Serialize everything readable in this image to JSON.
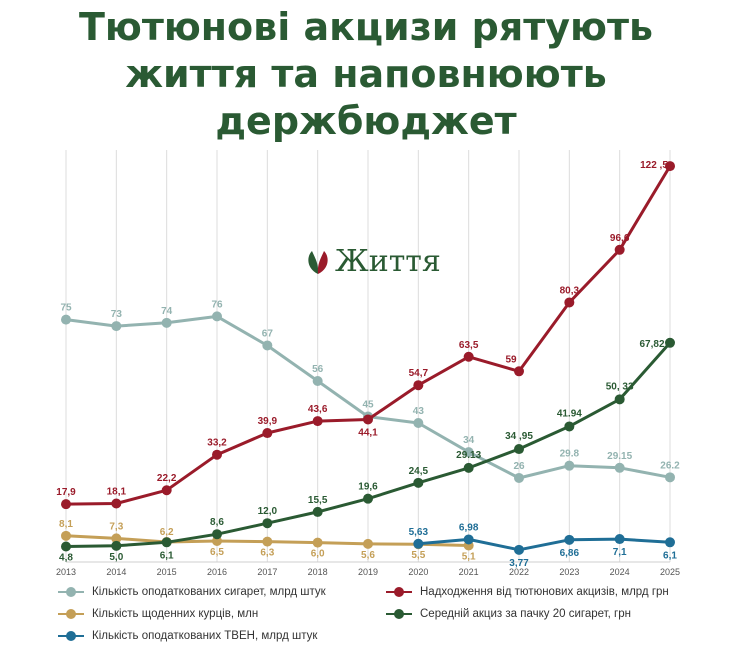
{
  "title_lines": [
    "Тютюнові акцизи рятують",
    "життя та наповнюють",
    "держбюджет"
  ],
  "logo_text": "Життя",
  "chart_data": {
    "type": "line",
    "x": [
      "2013",
      "2014",
      "2015",
      "2016",
      "2017",
      "2018",
      "2019",
      "2020",
      "2021",
      "2022",
      "2023",
      "2024",
      "2025"
    ],
    "ylim": [
      0,
      125
    ],
    "grid": "vertical",
    "legend_position": "bottom",
    "series": [
      {
        "key": "cig",
        "name": "Кількість оподаткованих сигарет, млрд штук",
        "color": "#93b3b0",
        "values": [
          75,
          73,
          74,
          76,
          67,
          56,
          45,
          43,
          34,
          26,
          29.8,
          29.15,
          26.2
        ],
        "labels": [
          "75",
          "73",
          "74",
          "76",
          "67",
          "56",
          "45",
          "43",
          "34",
          "26",
          "29.8",
          "29.15",
          "26.2"
        ]
      },
      {
        "key": "rev",
        "name": "Надходження від тютюнових акцизів, млрд грн",
        "color": "#9a1b2a",
        "values": [
          17.9,
          18.1,
          22.2,
          33.2,
          39.9,
          43.6,
          44.1,
          54.7,
          63.5,
          59,
          80.3,
          96.6,
          122.5
        ],
        "labels": [
          "17,9",
          "18,1",
          "22,2",
          "33,2",
          "39,9",
          "43,6",
          "44,1",
          "54,7",
          "63,5",
          "59",
          "80,3",
          "96,6",
          "122 ,5"
        ]
      },
      {
        "key": "smk",
        "name": "Кількість щоденних курців, млн",
        "color": "#c49f57",
        "values": [
          8.1,
          7.3,
          6.2,
          6.5,
          6.3,
          6.0,
          5.6,
          5.5,
          5.1,
          null,
          null,
          null,
          null
        ],
        "labels": [
          "8,1",
          "7,3",
          "6,2",
          "6,5",
          "6,3",
          "6,0",
          "5,6",
          "5,5",
          "5,1",
          null,
          null,
          null,
          null
        ]
      },
      {
        "key": "exc",
        "name": "Середній акциз за пачку 20 сигарет, грн",
        "color": "#2a5a33",
        "values": [
          4.8,
          5.0,
          6.1,
          8.6,
          12.0,
          15.5,
          19.6,
          24.5,
          29.13,
          34.95,
          41.94,
          50.33,
          67.82
        ],
        "labels": [
          "4,8",
          "5,0",
          "6,1",
          "8,6",
          "12,0",
          "15,5",
          "19,6",
          "24,5",
          "29.13",
          "34 ,95",
          "41.94",
          "50, 33",
          "67,82"
        ]
      },
      {
        "key": "hnb",
        "name": "Кількість оподаткованих ТВЕН, млрд штук",
        "color": "#1f6e96",
        "values": [
          null,
          null,
          null,
          null,
          null,
          null,
          null,
          5.63,
          6.98,
          3.77,
          6.86,
          7.1,
          6.1
        ],
        "labels": [
          null,
          null,
          null,
          null,
          null,
          null,
          null,
          "5,63",
          "6,98",
          "3,77",
          "6,86",
          "7,1",
          "6,1"
        ]
      }
    ]
  },
  "legend": [
    {
      "series": "cig",
      "color": "#93b3b0",
      "label": "Кількість оподаткованих сигарет, млрд штук"
    },
    {
      "series": "rev",
      "color": "#9a1b2a",
      "label": "Надходження від тютюнових акцизів, млрд грн"
    },
    {
      "series": "smk",
      "color": "#c49f57",
      "label": "Кількість щоденних курців, млн"
    },
    {
      "series": "exc",
      "color": "#2a5a33",
      "label": "Середній акциз за пачку 20 сигарет, грн"
    },
    {
      "series": "hnb",
      "color": "#1f6e96",
      "label": "Кількість оподаткованих ТВЕН, млрд штук"
    }
  ]
}
